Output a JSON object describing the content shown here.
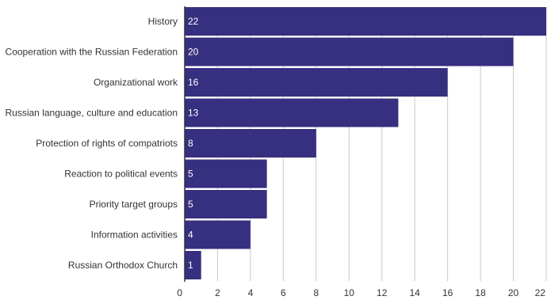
{
  "chart_data": {
    "type": "bar",
    "orientation": "horizontal",
    "title": "",
    "xlabel": "",
    "ylabel": "",
    "categories": [
      "History",
      "Cooperation with the Russian Federation",
      "Organizational work",
      "Russian language, culture and education",
      "Protection of rights of compatriots",
      "Reaction to political events",
      "Priority target groups",
      "Information activities",
      "Russian Orthodox Church"
    ],
    "values": [
      22,
      20,
      16,
      13,
      8,
      5,
      5,
      4,
      1
    ],
    "xlim": [
      0,
      22
    ],
    "xticks": [
      0,
      2,
      4,
      6,
      8,
      10,
      12,
      14,
      16,
      18,
      20,
      22
    ],
    "grid": true,
    "legend": "none",
    "bar_color": "#372f7f",
    "data_label_color": "#ffffff"
  }
}
